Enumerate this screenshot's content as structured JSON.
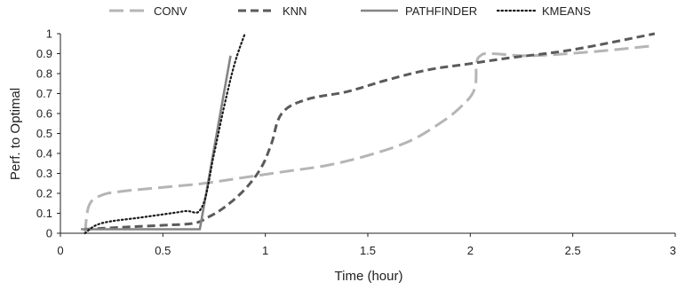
{
  "chart_data": {
    "type": "line",
    "title": "",
    "xlabel": "Time (hour)",
    "ylabel": "Perf. to Optimal",
    "xlim": [
      0,
      3
    ],
    "ylim": [
      0,
      1
    ],
    "x_ticks": [
      "0",
      "0.5",
      "1",
      "1.5",
      "2",
      "2.5",
      "3"
    ],
    "y_ticks": [
      "0",
      "0.1",
      "0.2",
      "0.3",
      "0.4",
      "0.5",
      "0.6",
      "0.7",
      "0.8",
      "0.9",
      "1"
    ],
    "grid": false,
    "legend_position": "top",
    "series": [
      {
        "name": "CONV",
        "color": "#b5b5b5",
        "dash": "long-dash",
        "x": [
          0.12,
          0.14,
          0.2,
          0.3,
          0.5,
          0.7,
          0.9,
          1.1,
          1.3,
          1.5,
          1.7,
          1.85,
          1.95,
          2.02,
          2.03,
          2.05,
          2.1,
          2.3,
          2.6,
          2.9
        ],
        "y": [
          0.0,
          0.14,
          0.19,
          0.21,
          0.23,
          0.25,
          0.28,
          0.31,
          0.34,
          0.39,
          0.46,
          0.55,
          0.63,
          0.72,
          0.85,
          0.89,
          0.9,
          0.89,
          0.91,
          0.94
        ]
      },
      {
        "name": "KNN",
        "color": "#5a5a5a",
        "dash": "dash",
        "x": [
          0.12,
          0.3,
          0.5,
          0.65,
          0.72,
          0.8,
          0.9,
          0.98,
          1.03,
          1.08,
          1.2,
          1.4,
          1.6,
          1.8,
          2.0,
          2.2,
          2.5,
          2.9
        ],
        "y": [
          0.02,
          0.03,
          0.04,
          0.05,
          0.08,
          0.13,
          0.22,
          0.33,
          0.45,
          0.6,
          0.67,
          0.71,
          0.77,
          0.82,
          0.85,
          0.88,
          0.92,
          1.0
        ]
      },
      {
        "name": "PATHFINDER",
        "color": "#848484",
        "dash": "solid",
        "x": [
          0.1,
          0.68,
          0.83
        ],
        "y": [
          0.02,
          0.02,
          0.89
        ]
      },
      {
        "name": "KMEANS",
        "color": "#1a1a1a",
        "dash": "dot",
        "x": [
          0.12,
          0.2,
          0.4,
          0.6,
          0.69,
          0.75,
          0.8,
          0.85,
          0.9
        ],
        "y": [
          0.0,
          0.05,
          0.08,
          0.11,
          0.13,
          0.4,
          0.64,
          0.85,
          1.0
        ]
      }
    ]
  }
}
